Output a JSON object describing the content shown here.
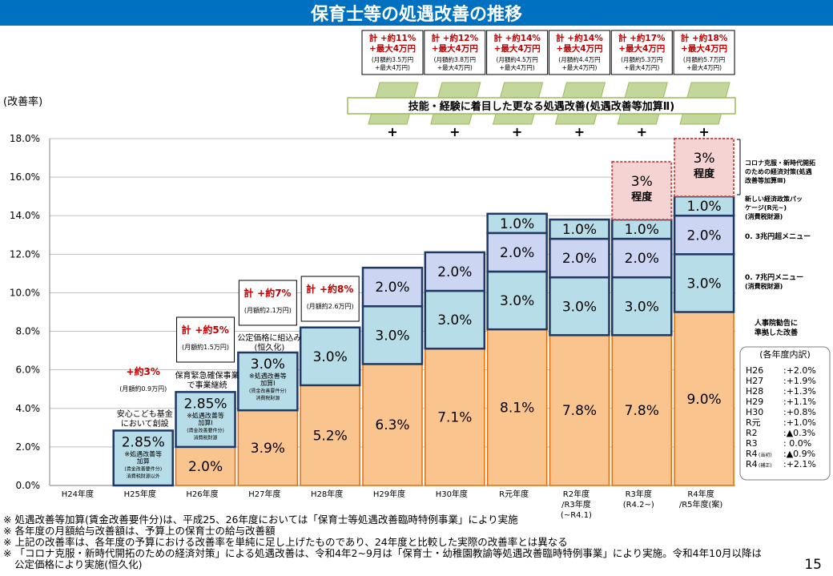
{
  "page": {
    "title": "保育士等の処遇改善の推移",
    "page_number": "15"
  },
  "chart_data": {
    "type": "bar",
    "stacked": true,
    "ylabel": "(改善率)",
    "ylim": [
      0,
      18
    ],
    "yticks": [
      "0.0%",
      "2.0%",
      "4.0%",
      "6.0%",
      "8.0%",
      "10.0%",
      "12.0%",
      "14.0%",
      "16.0%",
      "18.0%"
    ],
    "grid": true,
    "categories": [
      [
        "H24年度"
      ],
      [
        "H25年度"
      ],
      [
        "H26年度"
      ],
      [
        "H27年度"
      ],
      [
        "H28年度"
      ],
      [
        "H29年度"
      ],
      [
        "H30年度"
      ],
      [
        "R元年度"
      ],
      [
        "R2年度",
        "/R3年度",
        "(~R4.1)"
      ],
      [
        "R3年度",
        "(R4.2~)"
      ],
      [
        "R4年度",
        "/R5年度(案)"
      ]
    ],
    "segments": [
      [],
      [
        {
          "value": 2.85,
          "label": "2.85%",
          "kind": "kasan1",
          "note": [
            "※処遇改善等",
            "加算",
            "(賃金改善要件分)",
            "消費税財源以外"
          ]
        }
      ],
      [
        {
          "value": 2.0,
          "label": "2.0%",
          "kind": "base"
        },
        {
          "value": 2.85,
          "label": "2.85%",
          "kind": "kasan1",
          "note": [
            "※処遇改善等",
            "加算Ⅰ",
            "(賃金改善要件分)",
            "消費税財源"
          ]
        }
      ],
      [
        {
          "value": 3.9,
          "label": "3.9%",
          "kind": "base"
        },
        {
          "value": 3.0,
          "label": "3.0%",
          "kind": "kasan1",
          "note": [
            "※処遇改善等",
            "加算Ⅰ",
            "(賃金改善要件分)",
            "消費税財源"
          ]
        }
      ],
      [
        {
          "value": 5.2,
          "label": "5.2%",
          "kind": "base"
        },
        {
          "value": 3.0,
          "label": "3.0%",
          "kind": "kasan1"
        }
      ],
      [
        {
          "value": 6.3,
          "label": "6.3%",
          "kind": "base"
        },
        {
          "value": 3.0,
          "label": "3.0%",
          "kind": "kasan1"
        },
        {
          "value": 2.0,
          "label": "2.0%",
          "kind": "kasan2"
        }
      ],
      [
        {
          "value": 7.1,
          "label": "7.1%",
          "kind": "base"
        },
        {
          "value": 3.0,
          "label": "3.0%",
          "kind": "kasan1"
        },
        {
          "value": 2.0,
          "label": "2.0%",
          "kind": "kasan2"
        }
      ],
      [
        {
          "value": 8.1,
          "label": "8.1%",
          "kind": "base"
        },
        {
          "value": 3.0,
          "label": "3.0%",
          "kind": "kasan1"
        },
        {
          "value": 2.0,
          "label": "2.0%",
          "kind": "kasan2"
        },
        {
          "value": 1.0,
          "label": "1.0%",
          "kind": "kasan1"
        }
      ],
      [
        {
          "value": 7.8,
          "label": "7.8%",
          "kind": "base"
        },
        {
          "value": 3.0,
          "label": "3.0%",
          "kind": "kasan1"
        },
        {
          "value": 2.0,
          "label": "2.0%",
          "kind": "kasan2"
        },
        {
          "value": 1.0,
          "label": "1.0%",
          "kind": "kasan1"
        }
      ],
      [
        {
          "value": 7.8,
          "label": "7.8%",
          "kind": "base"
        },
        {
          "value": 3.0,
          "label": "3.0%",
          "kind": "kasan1"
        },
        {
          "value": 2.0,
          "label": "2.0%",
          "kind": "kasan2"
        },
        {
          "value": 1.0,
          "label": "1.0%",
          "kind": "kasan1"
        },
        {
          "value": 3.0,
          "label": "3%程度",
          "kind": "corona"
        }
      ],
      [
        {
          "value": 9.0,
          "label": "9.0%",
          "kind": "base"
        },
        {
          "value": 3.0,
          "label": "3.0%",
          "kind": "kasan1"
        },
        {
          "value": 2.0,
          "label": "2.0%",
          "kind": "kasan2"
        },
        {
          "value": 1.0,
          "label": "1.0%",
          "kind": "kasan1"
        },
        {
          "value": 3.0,
          "label": "3%程度",
          "kind": "corona"
        }
      ]
    ],
    "colors": {
      "base": "#fac48e",
      "base_border": "#e46c0a",
      "kasan1": "#b7dde8",
      "kasan2": "#ccd6f2",
      "frame": "#1f3864",
      "corona": "#f5d3d3",
      "corona_border": "#c0504d",
      "ramp": "#c3d69b",
      "ramp_border": "#9bbb59",
      "red": "#c00000"
    },
    "total_boxes": [
      {
        "index": 1,
        "main": "+約3%",
        "sub": "(月額約0.9万円)",
        "framed": false
      },
      {
        "index": 2,
        "prefix": "計",
        "main": "+約5%",
        "sub": "(月額約1.5万円)",
        "framed": true
      },
      {
        "index": 3,
        "prefix": "計",
        "main": "+約7%",
        "sub": "(月額約2.1万円)",
        "framed": true
      },
      {
        "index": 4,
        "prefix": "計",
        "main": "+約8%",
        "sub": "(月額約2.6万円)",
        "framed": true
      }
    ],
    "top_boxes": [
      {
        "index": 5,
        "line1": "計 +約11%",
        "line2": "+最大4万円",
        "sub1": "(月額約3.5万円",
        "sub2": "+最大4万円)"
      },
      {
        "index": 6,
        "line1": "計 +約12%",
        "line2": "+最大4万円",
        "sub1": "(月額約3.8万円",
        "sub2": "+最大4万円)"
      },
      {
        "index": 7,
        "line1": "計 +約14%",
        "line2": "+最大4万円",
        "sub1": "(月額約4.5万円",
        "sub2": "+最大4万円)"
      },
      {
        "index": 8,
        "line1": "計 +約14%",
        "line2": "+最大4万円",
        "sub1": "(月額約4.4万円",
        "sub2": "+最大4万円)"
      },
      {
        "index": 9,
        "line1": "計 +約17%",
        "line2": "+最大4万円",
        "sub1": "(月額約5.3万円",
        "sub2": "+最大4万円)"
      },
      {
        "index": 10,
        "line1": "計 +約18%",
        "line2": "+最大4万円",
        "sub1": "(月額約5.7万円",
        "sub2": "+最大4万円)"
      }
    ],
    "banner": "技能・経験に着目した更なる処遇改善(処遇改善等加算Ⅱ)",
    "plus": "+",
    "annotations": {
      "h25": [
        "安心こども基金",
        "において創設"
      ],
      "h26": [
        "保育緊急確保事業",
        "で事業継続"
      ],
      "h27": [
        "公定価格に組込み",
        "(恒久化)"
      ]
    },
    "right_labels": {
      "corona": [
        "コロナ克服・新時代開拓",
        "のための経済対策(処遇",
        "改善等加算Ⅲ)"
      ],
      "new_package": [
        "新しい経済政策パッ",
        "ケージ(R元~)",
        "(消費税財源)"
      ],
      "menu03": "0. 3兆円超メニュー",
      "menu07": [
        "0. 7兆円メニュー",
        "(消費税財源)"
      ],
      "jinjiin": [
        "人事院勧告に",
        "準拠した改善"
      ]
    },
    "breakdown": {
      "title": "(各年度内訳)",
      "rows": [
        {
          "year": "H26",
          "value": ":+2.0%"
        },
        {
          "year": "H27",
          "value": ":+1.9%"
        },
        {
          "year": "H28",
          "value": ":+1.3%"
        },
        {
          "year": "H29",
          "value": ":+1.1%"
        },
        {
          "year": "H30",
          "value": ":+0.8%"
        },
        {
          "year": "R元",
          "value": ":+1.0%"
        },
        {
          "year": "R2",
          "value": ":▲0.3%"
        },
        {
          "year": "R3",
          "value": ": 0.0%"
        },
        {
          "year": "R4",
          "tag": "(当初)",
          "value": ":▲0.9%"
        },
        {
          "year": "R4",
          "tag": "(補正)",
          "value": ":+2.1%"
        }
      ]
    }
  },
  "notes": [
    "※ 処遇改善等加算(賃金改善要件分)は、平成25、26年度においては「保育士等処遇改善臨時特例事業」により実施",
    "※ 各年度の月額給与改善額は、予算上の保育士の給与改善額",
    "※ 上記の改善率は、各年度の予算における改善率を単純に足し上げたものであり、24年度と比較した実際の改善率とは異なる",
    "※ 「コロナ克服・新時代開拓のための経済対策」による処遇改善は、令和4年2~9月は「保育士・幼稚園教諭等処遇改善臨時特例事業」により実施。令和4年10月以降は",
    "公定価格により実施(恒久化)"
  ]
}
